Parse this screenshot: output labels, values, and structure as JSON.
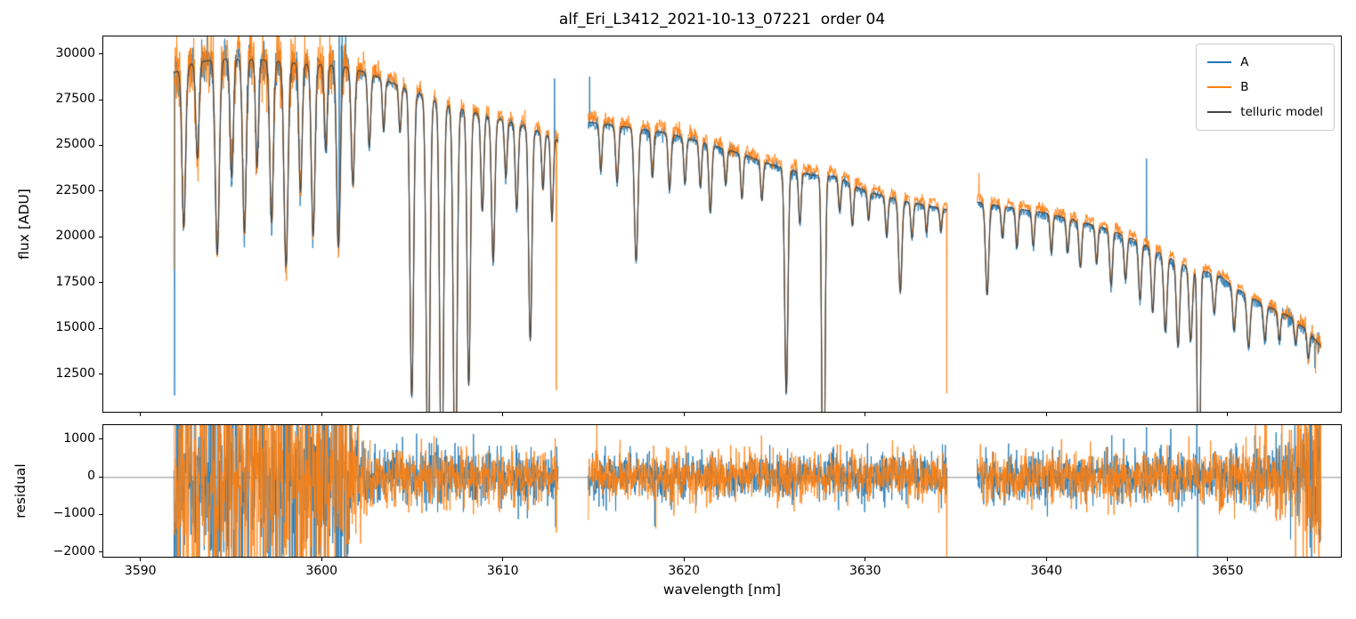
{
  "chart_data": {
    "type": "line",
    "title": "alf_Eri_L3412_2021-10-13_07221  order 04",
    "xlabel": "wavelength [nm]",
    "xlim": [
      3587.9,
      3656.3
    ],
    "x_ticks": [
      3590,
      3600,
      3610,
      3620,
      3630,
      3640,
      3650
    ],
    "sample_step_nm": 0.02,
    "segments": [
      [
        3591.8,
        3613.05
      ],
      [
        3614.7,
        3634.55
      ],
      [
        3636.2,
        3655.2
      ]
    ],
    "series": [
      {
        "name": "A",
        "color": "#1f77b4"
      },
      {
        "name": "B",
        "color": "#ff7f0e"
      },
      {
        "name": "telluric model",
        "color": "#444444"
      }
    ],
    "legend_position": "upper right",
    "flux_panel": {
      "ylabel": "flux [ADU]",
      "ylim": [
        10400,
        31000
      ],
      "y_ticks": [
        12500,
        15000,
        17500,
        20000,
        22500,
        25000,
        27500,
        30000
      ],
      "continuum_anchors": [
        [
          3591.8,
          29000
        ],
        [
          3593.0,
          29600
        ],
        [
          3595.0,
          29800
        ],
        [
          3597.0,
          29700
        ],
        [
          3599.0,
          29500
        ],
        [
          3601.0,
          29400
        ],
        [
          3602.5,
          29000
        ],
        [
          3604.0,
          28400
        ],
        [
          3605.5,
          27800
        ],
        [
          3607.0,
          27200
        ],
        [
          3608.5,
          26800
        ],
        [
          3610.0,
          26400
        ],
        [
          3611.5,
          26000
        ],
        [
          3613.0,
          25300
        ],
        [
          3614.7,
          26300
        ],
        [
          3617.0,
          26000
        ],
        [
          3619.0,
          25700
        ],
        [
          3621.0,
          25200
        ],
        [
          3623.0,
          24600
        ],
        [
          3625.0,
          23900
        ],
        [
          3627.0,
          23400
        ],
        [
          3628.5,
          23300
        ],
        [
          3630.0,
          22500
        ],
        [
          3632.0,
          22000
        ],
        [
          3634.5,
          21500
        ],
        [
          3636.2,
          21900
        ],
        [
          3638.0,
          21600
        ],
        [
          3640.0,
          21300
        ],
        [
          3642.0,
          20800
        ],
        [
          3643.5,
          20400
        ],
        [
          3645.0,
          19800
        ],
        [
          3646.5,
          19000
        ],
        [
          3648.0,
          18300
        ],
        [
          3649.5,
          17900
        ],
        [
          3650.5,
          17200
        ],
        [
          3652.0,
          16300
        ],
        [
          3653.5,
          15600
        ],
        [
          3654.5,
          14800
        ],
        [
          3655.2,
          14000
        ]
      ],
      "absorption_lines": [
        [
          3592.35,
          0.3,
          0.1
        ],
        [
          3593.1,
          0.18,
          0.09
        ],
        [
          3594.2,
          0.36,
          0.11
        ],
        [
          3595.0,
          0.22,
          0.09
        ],
        [
          3595.7,
          0.32,
          0.1
        ],
        [
          3596.4,
          0.2,
          0.08
        ],
        [
          3597.2,
          0.3,
          0.1
        ],
        [
          3598.0,
          0.38,
          0.11
        ],
        [
          3598.8,
          0.24,
          0.09
        ],
        [
          3599.5,
          0.32,
          0.1
        ],
        [
          3600.2,
          0.16,
          0.08
        ],
        [
          3600.9,
          0.34,
          0.1
        ],
        [
          3601.7,
          0.22,
          0.09
        ],
        [
          3602.6,
          0.14,
          0.08
        ],
        [
          3603.4,
          0.1,
          0.07
        ],
        [
          3604.3,
          0.09,
          0.07
        ],
        [
          3604.95,
          0.6,
          0.1
        ],
        [
          3605.85,
          0.78,
          0.1
        ],
        [
          3606.6,
          0.82,
          0.1
        ],
        [
          3607.35,
          0.82,
          0.1
        ],
        [
          3608.1,
          0.56,
          0.09
        ],
        [
          3608.85,
          0.2,
          0.08
        ],
        [
          3609.45,
          0.3,
          0.09
        ],
        [
          3610.15,
          0.12,
          0.07
        ],
        [
          3610.75,
          0.18,
          0.08
        ],
        [
          3611.5,
          0.45,
          0.09
        ],
        [
          3612.2,
          0.12,
          0.07
        ],
        [
          3612.7,
          0.18,
          0.07
        ],
        [
          3615.4,
          0.1,
          0.07
        ],
        [
          3616.3,
          0.12,
          0.08
        ],
        [
          3617.35,
          0.28,
          0.1
        ],
        [
          3618.25,
          0.1,
          0.07
        ],
        [
          3619.2,
          0.12,
          0.08
        ],
        [
          3620.05,
          0.1,
          0.07
        ],
        [
          3620.9,
          0.1,
          0.07
        ],
        [
          3621.45,
          0.15,
          0.08
        ],
        [
          3622.3,
          0.08,
          0.07
        ],
        [
          3623.2,
          0.1,
          0.07
        ],
        [
          3624.3,
          0.09,
          0.07
        ],
        [
          3625.65,
          0.52,
          0.09
        ],
        [
          3626.4,
          0.12,
          0.07
        ],
        [
          3627.7,
          0.95,
          0.08
        ],
        [
          3628.6,
          0.08,
          0.07
        ],
        [
          3629.3,
          0.1,
          0.07
        ],
        [
          3630.2,
          0.07,
          0.06
        ],
        [
          3631.2,
          0.1,
          0.07
        ],
        [
          3631.95,
          0.23,
          0.09
        ],
        [
          3632.6,
          0.09,
          0.07
        ],
        [
          3633.4,
          0.07,
          0.06
        ],
        [
          3634.2,
          0.06,
          0.06
        ],
        [
          3636.75,
          0.23,
          0.09
        ],
        [
          3637.6,
          0.08,
          0.07
        ],
        [
          3638.4,
          0.1,
          0.07
        ],
        [
          3639.3,
          0.09,
          0.07
        ],
        [
          3640.3,
          0.1,
          0.07
        ],
        [
          3641.2,
          0.09,
          0.07
        ],
        [
          3641.9,
          0.12,
          0.08
        ],
        [
          3642.8,
          0.1,
          0.07
        ],
        [
          3643.6,
          0.15,
          0.08
        ],
        [
          3644.4,
          0.12,
          0.08
        ],
        [
          3645.2,
          0.16,
          0.08
        ],
        [
          3645.9,
          0.18,
          0.08
        ],
        [
          3646.6,
          0.22,
          0.09
        ],
        [
          3647.3,
          0.25,
          0.09
        ],
        [
          3648.0,
          0.22,
          0.09
        ],
        [
          3648.45,
          0.9,
          0.07
        ],
        [
          3649.3,
          0.12,
          0.08
        ],
        [
          3650.4,
          0.14,
          0.08
        ],
        [
          3651.2,
          0.17,
          0.09
        ],
        [
          3652.1,
          0.12,
          0.08
        ],
        [
          3652.9,
          0.1,
          0.07
        ],
        [
          3653.8,
          0.08,
          0.07
        ],
        [
          3654.5,
          0.1,
          0.07
        ]
      ],
      "series_offset_anchors": {
        "A": [
          [
            3591.8,
            1.0
          ],
          [
            3613.0,
            0.999
          ],
          [
            3614.7,
            0.998
          ],
          [
            3634.5,
            0.997
          ],
          [
            3636.2,
            0.995
          ],
          [
            3648.0,
            0.992
          ],
          [
            3652.0,
            0.994
          ],
          [
            3655.2,
            0.997
          ]
        ],
        "B": [
          [
            3591.8,
            1.004
          ],
          [
            3602.0,
            1.008
          ],
          [
            3613.0,
            1.01
          ],
          [
            3614.7,
            1.01
          ],
          [
            3634.5,
            1.012
          ],
          [
            3636.2,
            1.012
          ],
          [
            3648.0,
            1.012
          ],
          [
            3655.2,
            1.01
          ]
        ]
      },
      "series_noise_rel_anchors": {
        "A": [
          [
            3591.8,
            0.02
          ],
          [
            3600.8,
            0.02
          ],
          [
            3602.3,
            0.006
          ],
          [
            3613.0,
            0.007
          ],
          [
            3614.7,
            0.006
          ],
          [
            3634.5,
            0.006
          ],
          [
            3636.2,
            0.006
          ],
          [
            3650.0,
            0.007
          ],
          [
            3652.5,
            0.01
          ],
          [
            3655.2,
            0.018
          ]
        ],
        "B": [
          [
            3591.8,
            0.034
          ],
          [
            3601.3,
            0.028
          ],
          [
            3602.5,
            0.007
          ],
          [
            3613.0,
            0.008
          ],
          [
            3614.7,
            0.007
          ],
          [
            3634.5,
            0.007
          ],
          [
            3636.2,
            0.007
          ],
          [
            3650.0,
            0.008
          ],
          [
            3652.5,
            0.011
          ],
          [
            3655.2,
            0.02
          ]
        ]
      },
      "spikes": {
        "A": [
          [
            3591.85,
            11300
          ],
          [
            3600.95,
            31500
          ],
          [
            3601.05,
            30500
          ],
          [
            3601.1,
            31500
          ],
          [
            3601.2,
            30200
          ],
          [
            3601.3,
            31500
          ],
          [
            3612.85,
            28700
          ],
          [
            3614.78,
            28800
          ],
          [
            3645.55,
            24300
          ],
          [
            3648.35,
            10300
          ],
          [
            3654.85,
            12800
          ]
        ],
        "B": [
          [
            3591.8,
            18200
          ],
          [
            3612.95,
            11600
          ],
          [
            3634.52,
            11400
          ],
          [
            3636.3,
            23500
          ],
          [
            3654.9,
            12500
          ]
        ]
      }
    },
    "residual_panel": {
      "ylabel": "residual",
      "ylim": [
        -2150,
        1400
      ],
      "y_ticks": [
        {
          "v": -2000,
          "label": "−2000"
        },
        {
          "v": -1000,
          "label": "−1000"
        },
        {
          "v": 0,
          "label": "0"
        },
        {
          "v": 1000,
          "label": "1000"
        }
      ],
      "zero_line": true,
      "noise_amp_anchors": {
        "A": [
          [
            3591.8,
            1500
          ],
          [
            3600.8,
            1500
          ],
          [
            3602.3,
            400
          ],
          [
            3613.0,
            360
          ],
          [
            3614.7,
            330
          ],
          [
            3634.5,
            330
          ],
          [
            3636.2,
            330
          ],
          [
            3650.0,
            360
          ],
          [
            3652.5,
            520
          ],
          [
            3654.0,
            900
          ],
          [
            3655.2,
            1500
          ]
        ],
        "B": [
          [
            3591.8,
            1800
          ],
          [
            3601.3,
            1700
          ],
          [
            3602.5,
            420
          ],
          [
            3613.0,
            390
          ],
          [
            3614.7,
            350
          ],
          [
            3634.5,
            350
          ],
          [
            3636.2,
            350
          ],
          [
            3650.0,
            390
          ],
          [
            3652.5,
            560
          ],
          [
            3654.0,
            1000
          ],
          [
            3655.2,
            1700
          ]
        ]
      },
      "spikes": {
        "A": [
          [
            3600.95,
            2400
          ],
          [
            3601.05,
            -2400
          ],
          [
            3601.15,
            2400
          ],
          [
            3601.25,
            -2400
          ],
          [
            3612.9,
            -1350
          ],
          [
            3645.55,
            1350
          ],
          [
            3646.9,
            1300
          ],
          [
            3648.33,
            1450
          ],
          [
            3648.37,
            -2400
          ],
          [
            3654.6,
            -1900
          ]
        ],
        "B": [
          [
            3612.95,
            -1500
          ],
          [
            3634.52,
            -2400
          ],
          [
            3654.95,
            2200
          ]
        ]
      }
    }
  }
}
